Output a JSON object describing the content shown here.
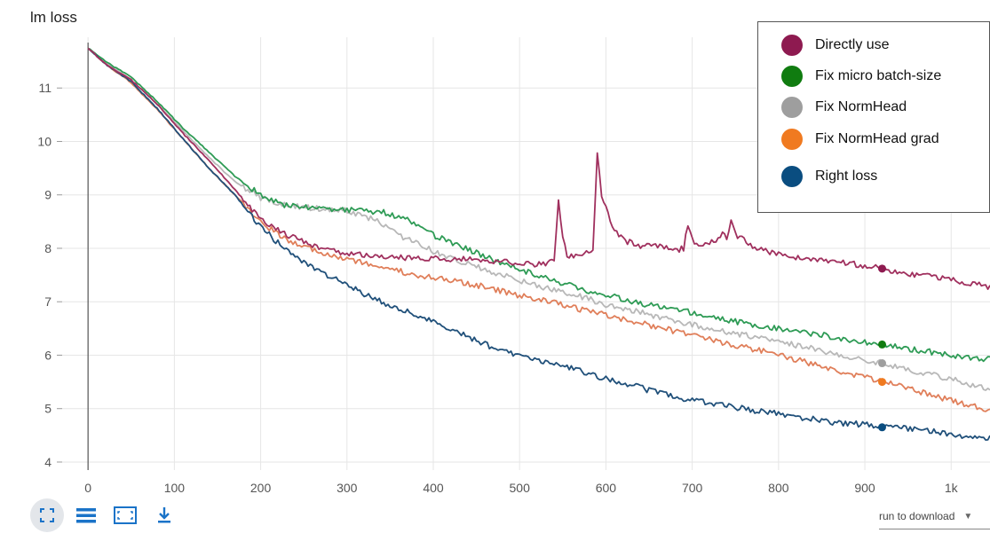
{
  "chart_title": "lm loss",
  "legend": {
    "items": [
      {
        "label": "Directly use",
        "color": "#8e1a50"
      },
      {
        "label": "Fix micro batch-size",
        "color": "#107c10"
      },
      {
        "label": "Fix NormHead",
        "color": "#9e9e9e"
      },
      {
        "label": "Fix NormHead grad",
        "color": "#f07a20"
      },
      {
        "label": "Right loss",
        "color": "#0a4d80"
      }
    ]
  },
  "toolbar": {
    "icons": [
      "fullscreen-icon",
      "lines-icon",
      "fit-domain-icon",
      "download-icon"
    ],
    "download_label": "run to download",
    "caret": "▼"
  },
  "chart_data": {
    "type": "line",
    "title": "lm loss",
    "xlabel": "",
    "ylabel": "",
    "xlim": [
      -30,
      1045
    ],
    "ylim": [
      3.85,
      11.95
    ],
    "x_ticks": [
      0,
      100,
      200,
      300,
      400,
      500,
      600,
      700,
      800,
      900,
      1000
    ],
    "x_tick_labels": [
      "0",
      "100",
      "200",
      "300",
      "400",
      "500",
      "600",
      "700",
      "800",
      "900",
      "1k"
    ],
    "y_ticks": [
      4,
      5,
      6,
      7,
      8,
      9,
      10,
      11
    ],
    "grid": true,
    "legend_position": "top-right",
    "series": [
      {
        "name": "Directly use",
        "color": "#8e1a50",
        "line_color": "#a0305e",
        "marker_x": 920,
        "points": [
          [
            0,
            11.75
          ],
          [
            20,
            11.45
          ],
          [
            50,
            11.15
          ],
          [
            80,
            10.7
          ],
          [
            110,
            10.15
          ],
          [
            140,
            9.65
          ],
          [
            170,
            9.1
          ],
          [
            200,
            8.55
          ],
          [
            230,
            8.25
          ],
          [
            260,
            8.05
          ],
          [
            300,
            7.9
          ],
          [
            340,
            7.85
          ],
          [
            380,
            7.8
          ],
          [
            420,
            7.8
          ],
          [
            460,
            7.78
          ],
          [
            500,
            7.72
          ],
          [
            530,
            7.7
          ],
          [
            540,
            7.75
          ],
          [
            545,
            8.9
          ],
          [
            550,
            8.2
          ],
          [
            555,
            7.85
          ],
          [
            570,
            7.85
          ],
          [
            585,
            7.95
          ],
          [
            590,
            9.8
          ],
          [
            595,
            9.0
          ],
          [
            600,
            8.75
          ],
          [
            610,
            8.35
          ],
          [
            620,
            8.15
          ],
          [
            640,
            8.05
          ],
          [
            660,
            8.05
          ],
          [
            680,
            7.95
          ],
          [
            690,
            8.0
          ],
          [
            695,
            8.45
          ],
          [
            700,
            8.15
          ],
          [
            710,
            8.05
          ],
          [
            720,
            8.1
          ],
          [
            730,
            8.15
          ],
          [
            735,
            8.35
          ],
          [
            740,
            8.15
          ],
          [
            745,
            8.55
          ],
          [
            750,
            8.25
          ],
          [
            770,
            8.05
          ],
          [
            800,
            7.88
          ],
          [
            840,
            7.8
          ],
          [
            880,
            7.72
          ],
          [
            920,
            7.62
          ],
          [
            960,
            7.5
          ],
          [
            1000,
            7.42
          ],
          [
            1045,
            7.28
          ]
        ]
      },
      {
        "name": "Fix micro batch-size",
        "color": "#107c10",
        "line_color": "#2e9b55",
        "marker_x": 920,
        "points": [
          [
            0,
            11.75
          ],
          [
            20,
            11.5
          ],
          [
            50,
            11.2
          ],
          [
            80,
            10.75
          ],
          [
            110,
            10.25
          ],
          [
            140,
            9.8
          ],
          [
            170,
            9.35
          ],
          [
            200,
            9.0
          ],
          [
            230,
            8.8
          ],
          [
            260,
            8.75
          ],
          [
            300,
            8.72
          ],
          [
            340,
            8.68
          ],
          [
            370,
            8.55
          ],
          [
            400,
            8.25
          ],
          [
            430,
            8.05
          ],
          [
            460,
            7.85
          ],
          [
            500,
            7.6
          ],
          [
            540,
            7.4
          ],
          [
            580,
            7.2
          ],
          [
            620,
            7.05
          ],
          [
            660,
            6.9
          ],
          [
            700,
            6.8
          ],
          [
            740,
            6.65
          ],
          [
            780,
            6.55
          ],
          [
            820,
            6.45
          ],
          [
            860,
            6.35
          ],
          [
            900,
            6.25
          ],
          [
            940,
            6.15
          ],
          [
            980,
            6.05
          ],
          [
            1010,
            5.97
          ],
          [
            1045,
            5.92
          ]
        ]
      },
      {
        "name": "Fix NormHead",
        "color": "#9e9e9e",
        "line_color": "#b8b8b8",
        "marker_x": 920,
        "points": [
          [
            0,
            11.75
          ],
          [
            20,
            11.48
          ],
          [
            50,
            11.15
          ],
          [
            80,
            10.7
          ],
          [
            110,
            10.2
          ],
          [
            140,
            9.7
          ],
          [
            170,
            9.25
          ],
          [
            200,
            8.95
          ],
          [
            230,
            8.8
          ],
          [
            260,
            8.75
          ],
          [
            300,
            8.7
          ],
          [
            330,
            8.55
          ],
          [
            360,
            8.25
          ],
          [
            400,
            7.95
          ],
          [
            440,
            7.7
          ],
          [
            480,
            7.5
          ],
          [
            520,
            7.3
          ],
          [
            560,
            7.15
          ],
          [
            600,
            6.95
          ],
          [
            640,
            6.8
          ],
          [
            680,
            6.65
          ],
          [
            720,
            6.5
          ],
          [
            760,
            6.38
          ],
          [
            800,
            6.25
          ],
          [
            840,
            6.12
          ],
          [
            880,
            5.98
          ],
          [
            920,
            5.85
          ],
          [
            960,
            5.7
          ],
          [
            1000,
            5.55
          ],
          [
            1045,
            5.35
          ]
        ]
      },
      {
        "name": "Fix NormHead grad",
        "color": "#f07a20",
        "line_color": "#e07f5a",
        "marker_x": 920,
        "points": [
          [
            0,
            11.75
          ],
          [
            20,
            11.45
          ],
          [
            50,
            11.1
          ],
          [
            80,
            10.6
          ],
          [
            110,
            10.05
          ],
          [
            140,
            9.5
          ],
          [
            170,
            9.0
          ],
          [
            200,
            8.5
          ],
          [
            230,
            8.15
          ],
          [
            260,
            7.98
          ],
          [
            300,
            7.8
          ],
          [
            340,
            7.65
          ],
          [
            380,
            7.5
          ],
          [
            420,
            7.4
          ],
          [
            460,
            7.28
          ],
          [
            500,
            7.12
          ],
          [
            540,
            6.98
          ],
          [
            580,
            6.82
          ],
          [
            620,
            6.68
          ],
          [
            660,
            6.52
          ],
          [
            700,
            6.38
          ],
          [
            740,
            6.22
          ],
          [
            780,
            6.08
          ],
          [
            820,
            5.92
          ],
          [
            860,
            5.75
          ],
          [
            900,
            5.58
          ],
          [
            940,
            5.42
          ],
          [
            980,
            5.25
          ],
          [
            1010,
            5.1
          ],
          [
            1045,
            4.98
          ]
        ]
      },
      {
        "name": "Right loss",
        "color": "#0a4d80",
        "line_color": "#20507a",
        "marker_x": 920,
        "points": [
          [
            0,
            11.75
          ],
          [
            20,
            11.45
          ],
          [
            50,
            11.12
          ],
          [
            80,
            10.62
          ],
          [
            110,
            10.05
          ],
          [
            140,
            9.5
          ],
          [
            170,
            9.0
          ],
          [
            200,
            8.4
          ],
          [
            230,
            7.95
          ],
          [
            260,
            7.65
          ],
          [
            300,
            7.3
          ],
          [
            340,
            7.0
          ],
          [
            380,
            6.75
          ],
          [
            420,
            6.5
          ],
          [
            460,
            6.2
          ],
          [
            500,
            5.98
          ],
          [
            540,
            5.85
          ],
          [
            580,
            5.65
          ],
          [
            620,
            5.48
          ],
          [
            660,
            5.3
          ],
          [
            700,
            5.15
          ],
          [
            740,
            5.05
          ],
          [
            780,
            4.95
          ],
          [
            820,
            4.85
          ],
          [
            860,
            4.75
          ],
          [
            900,
            4.7
          ],
          [
            920,
            4.65
          ],
          [
            940,
            4.65
          ],
          [
            980,
            4.58
          ],
          [
            1010,
            4.5
          ],
          [
            1045,
            4.45
          ]
        ]
      }
    ]
  }
}
